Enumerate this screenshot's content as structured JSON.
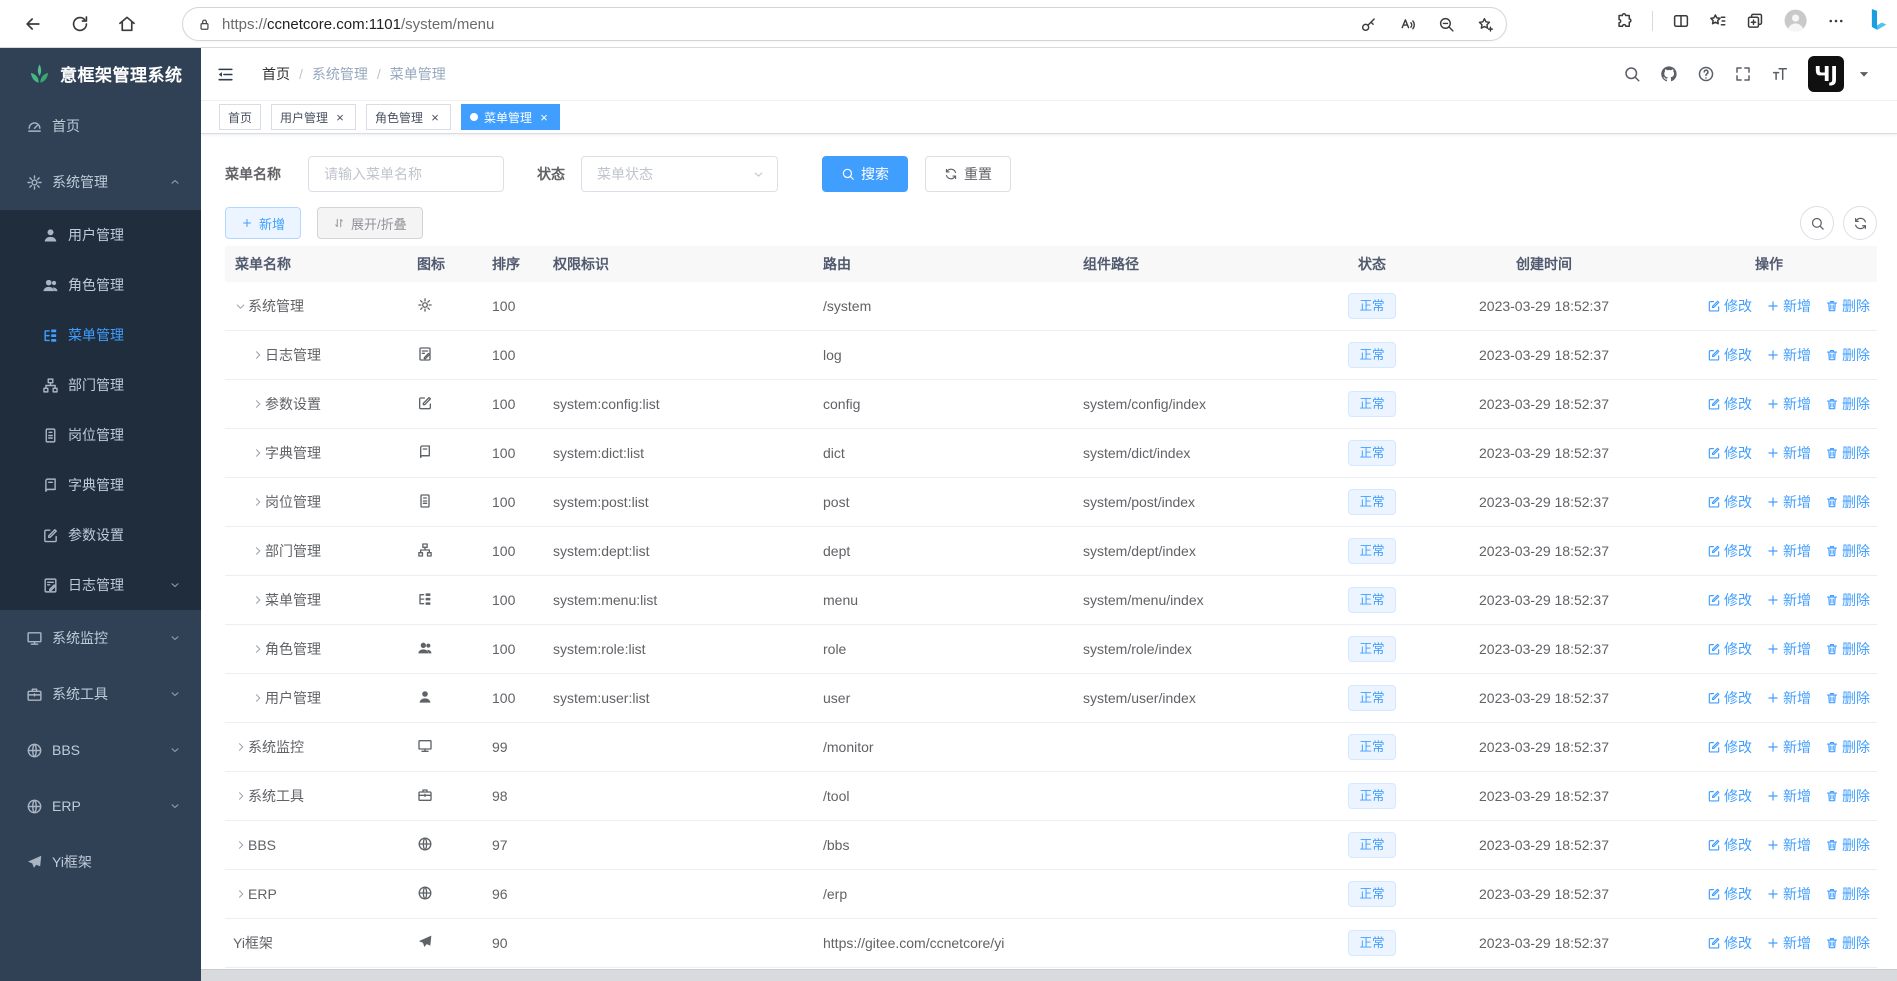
{
  "browser": {
    "url_scheme": "https://",
    "url_host": "ccnetcore.com:1101",
    "url_path": "/system/menu",
    "left_icons": [
      {
        "icon": "arrow-left",
        "name": "back"
      },
      {
        "icon": "reload",
        "name": "refresh-page"
      },
      {
        "icon": "home",
        "name": "home"
      }
    ],
    "pill_icons": [
      {
        "icon": "key",
        "name": "password-manager"
      },
      {
        "icon": "read-aloud",
        "name": "read-aloud"
      },
      {
        "icon": "zoom-out",
        "name": "zoom"
      },
      {
        "icon": "star-add",
        "name": "add-favorite"
      }
    ],
    "right_icons": [
      {
        "icon": "puzzle",
        "name": "extensions"
      },
      {
        "icon": "divider",
        "name": "toolbar-divider"
      },
      {
        "icon": "split-screen",
        "name": "split-screen"
      },
      {
        "icon": "star-lines",
        "name": "favorites"
      },
      {
        "icon": "collections",
        "name": "collections"
      },
      {
        "icon": "profile",
        "name": "profile-avatar"
      },
      {
        "icon": "dots",
        "name": "settings-menu"
      },
      {
        "icon": "bing",
        "name": "bing-chat"
      }
    ]
  },
  "app": {
    "title": "意框架管理系统",
    "accent_color": "#409eff",
    "sidebar_bg": "#304156",
    "submenu_bg": "#1f2d3d",
    "logo_green": "#43b984"
  },
  "sidebar": {
    "items": [
      {
        "key": "home",
        "label": "首页",
        "icon": "dashboard",
        "level": 0
      },
      {
        "key": "system",
        "label": "系统管理",
        "icon": "gear",
        "level": 0,
        "arrow": "up"
      },
      {
        "key": "user",
        "label": "用户管理",
        "icon": "user",
        "level": 1
      },
      {
        "key": "role",
        "label": "角色管理",
        "icon": "peoples",
        "level": 1
      },
      {
        "key": "menu",
        "label": "菜单管理",
        "icon": "tree-table",
        "level": 1,
        "active": true
      },
      {
        "key": "dept",
        "label": "部门管理",
        "icon": "tree",
        "level": 1
      },
      {
        "key": "post",
        "label": "岗位管理",
        "icon": "post",
        "level": 1
      },
      {
        "key": "dict",
        "label": "字典管理",
        "icon": "dict",
        "level": 1
      },
      {
        "key": "config",
        "label": "参数设置",
        "icon": "edit",
        "level": 1
      },
      {
        "key": "log",
        "label": "日志管理",
        "icon": "log",
        "level": 1,
        "arrow": "down"
      },
      {
        "key": "monitor",
        "label": "系统监控",
        "icon": "monitor",
        "level": 0,
        "arrow": "down"
      },
      {
        "key": "tool",
        "label": "系统工具",
        "icon": "tool",
        "level": 0,
        "arrow": "down"
      },
      {
        "key": "bbs",
        "label": "BBS",
        "icon": "globe",
        "level": 0,
        "arrow": "down"
      },
      {
        "key": "erp",
        "label": "ERP",
        "icon": "globe",
        "level": 0,
        "arrow": "down"
      },
      {
        "key": "yi",
        "label": "Yi框架",
        "icon": "guide",
        "level": 0
      }
    ]
  },
  "navbar": {
    "breadcrumb": [
      "首页",
      "系统管理",
      "菜单管理"
    ],
    "right_icons": [
      {
        "icon": "search",
        "name": "header-search"
      },
      {
        "icon": "github",
        "name": "github-link"
      },
      {
        "icon": "question",
        "name": "docs-help"
      },
      {
        "icon": "fullscreen",
        "name": "fullscreen-toggle"
      },
      {
        "icon": "font-size",
        "name": "font-size-select"
      }
    ],
    "avatar_glyph": "ЧJ"
  },
  "tags": [
    {
      "label": "首页",
      "closable": false,
      "active": false
    },
    {
      "label": "用户管理",
      "closable": true,
      "active": false
    },
    {
      "label": "角色管理",
      "closable": true,
      "active": false
    },
    {
      "label": "菜单管理",
      "closable": true,
      "active": true
    }
  ],
  "filters": {
    "name_label": "菜单名称",
    "name_placeholder": "请输入菜单名称",
    "name_value": "",
    "status_label": "状态",
    "status_placeholder": "菜单状态",
    "search_label": "搜索",
    "reset_label": "重置"
  },
  "toolbar": {
    "add_label": "新增",
    "expand_label": "展开/折叠"
  },
  "table": {
    "columns": [
      "菜单名称",
      "图标",
      "排序",
      "权限标识",
      "路由",
      "组件路径",
      "状态",
      "创建时间",
      "操作"
    ],
    "actions": {
      "edit": "修改",
      "add": "新增",
      "delete": "删除"
    },
    "rows": [
      {
        "name": "系统管理",
        "icon": "gear",
        "sort": "100",
        "perms": "",
        "route": "/system",
        "component": "",
        "status": "正常",
        "time": "2023-03-29 18:52:37",
        "level": 0,
        "expand": "open"
      },
      {
        "name": "日志管理",
        "icon": "log",
        "sort": "100",
        "perms": "",
        "route": "log",
        "component": "",
        "status": "正常",
        "time": "2023-03-29 18:52:37",
        "level": 1,
        "expand": "closed"
      },
      {
        "name": "参数设置",
        "icon": "edit",
        "sort": "100",
        "perms": "system:config:list",
        "route": "config",
        "component": "system/config/index",
        "status": "正常",
        "time": "2023-03-29 18:52:37",
        "level": 1,
        "expand": "closed"
      },
      {
        "name": "字典管理",
        "icon": "dict",
        "sort": "100",
        "perms": "system:dict:list",
        "route": "dict",
        "component": "system/dict/index",
        "status": "正常",
        "time": "2023-03-29 18:52:37",
        "level": 1,
        "expand": "closed"
      },
      {
        "name": "岗位管理",
        "icon": "post",
        "sort": "100",
        "perms": "system:post:list",
        "route": "post",
        "component": "system/post/index",
        "status": "正常",
        "time": "2023-03-29 18:52:37",
        "level": 1,
        "expand": "closed"
      },
      {
        "name": "部门管理",
        "icon": "tree",
        "sort": "100",
        "perms": "system:dept:list",
        "route": "dept",
        "component": "system/dept/index",
        "status": "正常",
        "time": "2023-03-29 18:52:37",
        "level": 1,
        "expand": "closed"
      },
      {
        "name": "菜单管理",
        "icon": "tree-table",
        "sort": "100",
        "perms": "system:menu:list",
        "route": "menu",
        "component": "system/menu/index",
        "status": "正常",
        "time": "2023-03-29 18:52:37",
        "level": 1,
        "expand": "closed"
      },
      {
        "name": "角色管理",
        "icon": "peoples",
        "sort": "100",
        "perms": "system:role:list",
        "route": "role",
        "component": "system/role/index",
        "status": "正常",
        "time": "2023-03-29 18:52:37",
        "level": 1,
        "expand": "closed"
      },
      {
        "name": "用户管理",
        "icon": "user",
        "sort": "100",
        "perms": "system:user:list",
        "route": "user",
        "component": "system/user/index",
        "status": "正常",
        "time": "2023-03-29 18:52:37",
        "level": 1,
        "expand": "closed"
      },
      {
        "name": "系统监控",
        "icon": "monitor",
        "sort": "99",
        "perms": "",
        "route": "/monitor",
        "component": "",
        "status": "正常",
        "time": "2023-03-29 18:52:37",
        "level": 0,
        "expand": "closed"
      },
      {
        "name": "系统工具",
        "icon": "tool",
        "sort": "98",
        "perms": "",
        "route": "/tool",
        "component": "",
        "status": "正常",
        "time": "2023-03-29 18:52:37",
        "level": 0,
        "expand": "closed"
      },
      {
        "name": "BBS",
        "icon": "globe",
        "sort": "97",
        "perms": "",
        "route": "/bbs",
        "component": "",
        "status": "正常",
        "time": "2023-03-29 18:52:37",
        "level": 0,
        "expand": "closed"
      },
      {
        "name": "ERP",
        "icon": "globe",
        "sort": "96",
        "perms": "",
        "route": "/erp",
        "component": "",
        "status": "正常",
        "time": "2023-03-29 18:52:37",
        "level": 0,
        "expand": "closed"
      },
      {
        "name": "Yi框架",
        "icon": "guide",
        "sort": "90",
        "perms": "",
        "route": "https://gitee.com/ccnetcore/yi",
        "component": "",
        "status": "正常",
        "time": "2023-03-29 18:52:37",
        "level": 0,
        "expand": "none"
      }
    ]
  }
}
